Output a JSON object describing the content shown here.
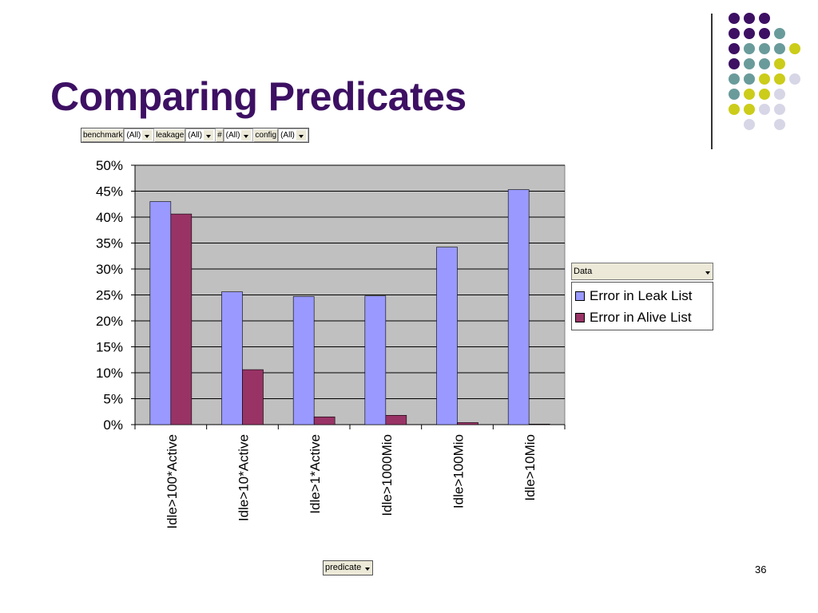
{
  "slide": {
    "title": "Comparing Predicates",
    "page_number": "36"
  },
  "filters": [
    {
      "label": "benchmark",
      "value": "(All)"
    },
    {
      "label": "leakage",
      "value": "(All)"
    },
    {
      "label": "#",
      "value": "(All)"
    },
    {
      "label": "config",
      "value": "(All)"
    }
  ],
  "legend": {
    "header": "Data"
  },
  "axis_field_button": "predicate",
  "colors": {
    "title": "#3d1063",
    "series1": "#9999ff",
    "series2": "#993366",
    "plot_bg": "#c0c0c0",
    "dot_purple": "#3d1063",
    "dot_teal": "#6a9b9b",
    "dot_yellow": "#cccc1a",
    "dot_lavender": "#d6d6e6"
  },
  "chart_data": {
    "type": "bar",
    "categories": [
      "Idle>100*Active",
      "Idle>10*Active",
      "Idle>1*Active",
      "Idle>1000Mio",
      "Idle>100Mio",
      "Idle>10Mio"
    ],
    "series": [
      {
        "name": "Error in Leak List",
        "values": [
          43,
          25.6,
          24.7,
          24.8,
          34.2,
          45.3
        ]
      },
      {
        "name": "Error in Alive List",
        "values": [
          40.6,
          10.6,
          1.5,
          1.8,
          0.4,
          0.1
        ]
      }
    ],
    "yticks": [
      "0%",
      "5%",
      "10%",
      "15%",
      "20%",
      "25%",
      "30%",
      "35%",
      "40%",
      "45%",
      "50%"
    ],
    "ylim": [
      0,
      50
    ],
    "grid": true,
    "legend_position": "right"
  }
}
